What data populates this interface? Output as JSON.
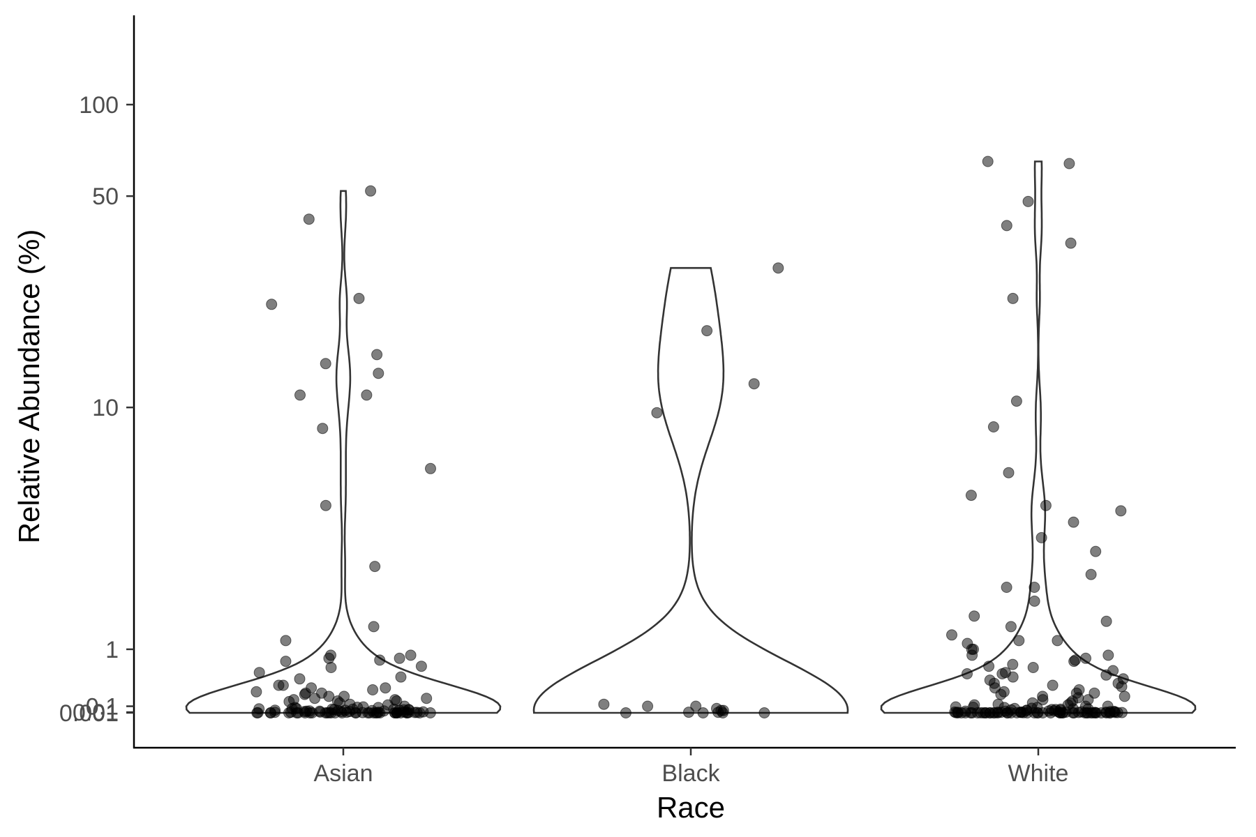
{
  "chart_data": {
    "type": "violin",
    "xlabel": "Race",
    "ylabel": "Relative Abundance (%)",
    "y_scale": "pseudo-log",
    "y_ticks": [
      0.001,
      0.01,
      0.1,
      1,
      10,
      50,
      100
    ],
    "y_tick_labels": [
      "0.001",
      "0.01",
      "0.1",
      "1",
      "10",
      "50",
      "100"
    ],
    "categories": [
      "Asian",
      "Black",
      "White"
    ],
    "grid": false,
    "legend": "none",
    "colors": {
      "points": "#000000",
      "violin_outline": "#333333"
    },
    "series": [
      {
        "category": "Asian",
        "values": [
          52,
          42,
          11,
          6.2,
          2.7,
          1.4,
          1.15,
          0.9,
          0.82,
          0.55,
          0.38,
          0.22,
          0.2,
          0.17,
          0.085,
          0.065,
          0.063,
          0.055,
          0.05,
          0.045,
          0.04,
          0.035,
          0.03,
          0.025,
          0.02,
          0.012,
          0.006,
          0.003,
          0.002,
          0.9,
          0.85,
          0.8,
          0.42,
          0.38,
          0.3,
          0.25,
          0.22,
          0.18,
          0.12,
          0.08,
          0.055,
          0.045,
          0.04,
          0.03,
          0.02,
          0.012,
          0.01,
          0.008,
          23,
          22,
          15,
          14,
          13,
          11,
          8.5,
          4.6,
          0.85,
          0.72,
          0.7,
          0.62,
          0.52,
          0.42,
          0.35,
          0.32,
          0.3,
          0.28,
          0.25,
          0.2,
          0.18,
          0.15,
          0.13,
          0.1,
          0.09,
          0.08,
          0.06,
          0.055,
          0.05,
          0.04,
          0.035,
          0.025,
          0.02,
          0.015,
          0.01,
          0.008,
          0.005,
          0.004,
          0.0015,
          0,
          0,
          0,
          0,
          0,
          0,
          0,
          0,
          0,
          0,
          0,
          0,
          0,
          0,
          0,
          0,
          0,
          0,
          0,
          0,
          0,
          0,
          0,
          0,
          0,
          0,
          0,
          0,
          0,
          0,
          0,
          0
        ]
      },
      {
        "category": "Black",
        "values": [
          29,
          18,
          12,
          9.6,
          0.13,
          0.1,
          0.1,
          0.065,
          0.036,
          0.036,
          0.01,
          0.008,
          0,
          0,
          0,
          0
        ]
      },
      {
        "category": "White",
        "values": [
          65,
          64,
          48,
          40,
          35,
          23,
          10.5,
          8.6,
          6.0,
          5.0,
          4.6,
          4.4,
          4.0,
          3.5,
          3.1,
          2.5,
          2.2,
          2.2,
          1.9,
          1.6,
          1.5,
          1.4,
          1.25,
          1.15,
          1.15,
          1.1,
          1.0,
          1.0,
          0.9,
          0.85,
          0.82,
          0.8,
          0.75,
          0.72,
          0.7,
          0.65,
          0.62,
          0.6,
          0.58,
          0.55,
          0.52,
          0.5,
          0.45,
          0.42,
          0.4,
          0.38,
          0.35,
          0.32,
          0.3,
          0.28,
          0.25,
          0.23,
          0.2,
          0.18,
          0.15,
          0.13,
          0.12,
          0.1,
          0.09,
          0.085,
          0.08,
          0.07,
          0.065,
          0.06,
          0.055,
          0.05,
          0.045,
          0.04,
          0.036,
          0.03,
          0.025,
          0.02,
          0.018,
          0.015,
          0.012,
          0.01,
          0.009,
          0.008,
          0.007,
          0.006,
          0.005,
          0.004,
          0.003,
          0.002,
          0.0015,
          0.001,
          0.9,
          0.6,
          0.45,
          0.3,
          0.25,
          0.2,
          0.15,
          0.12,
          0.1,
          0.08,
          0.06,
          0.05,
          0.04,
          0.03,
          0.025,
          0.02,
          0.015,
          0.012,
          0.01,
          0.008,
          0.006,
          0.005,
          0.004,
          0,
          0,
          0,
          0,
          0,
          0,
          0,
          0,
          0,
          0,
          0,
          0,
          0,
          0,
          0,
          0,
          0,
          0,
          0,
          0,
          0,
          0,
          0,
          0,
          0,
          0,
          0,
          0,
          0,
          0,
          0,
          0,
          0,
          0,
          0,
          0,
          0,
          0,
          0,
          0
        ]
      }
    ]
  }
}
